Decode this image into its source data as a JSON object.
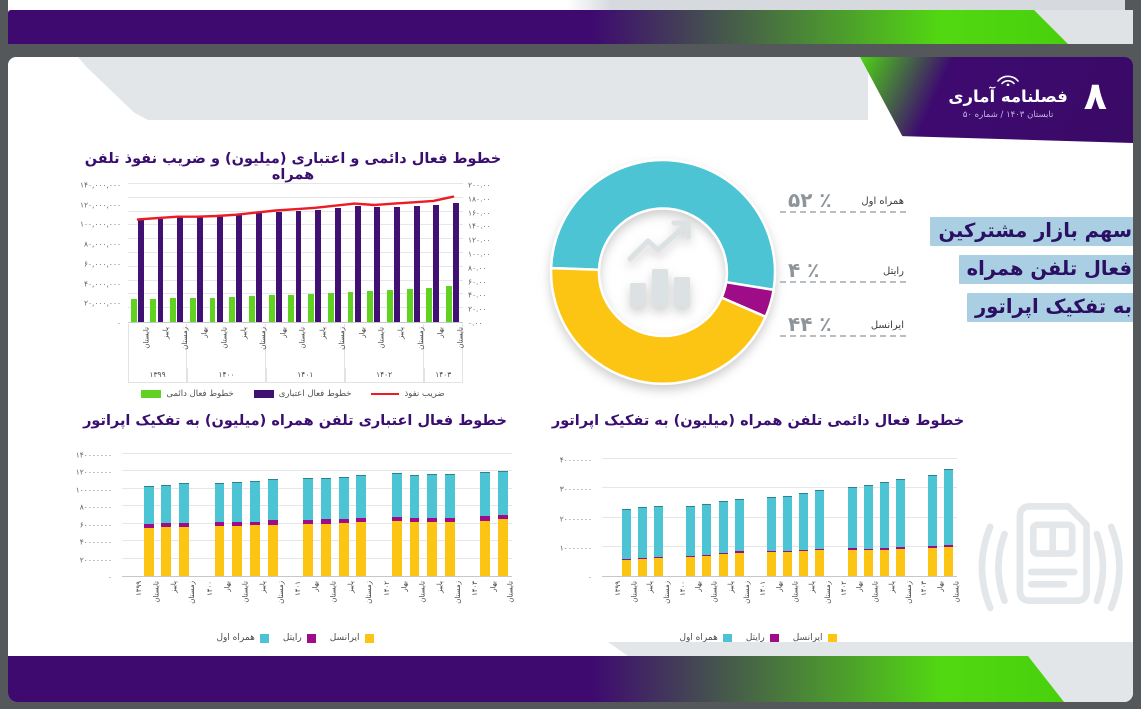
{
  "header": {
    "brand": "فصلنامه آماری",
    "page_number": "۸",
    "issue": "تابستان ۱۴۰۳ / شماره ۵۰"
  },
  "side_title": {
    "lines": [
      "سهم بازار مشترکین",
      "فعال تلفن همراه",
      "به تفکیک اپراتور"
    ]
  },
  "colors": {
    "purple_bar": "#401173",
    "green_bar": "#61d122",
    "red_line": "#ec1c24",
    "teal": "#4cc4d4",
    "yellow": "#fcc413",
    "magenta": "#9e0d87",
    "title_text": "#3a0d70",
    "highlight_bg": "#aacfe3",
    "gradient_purple": "#3e0a70",
    "gradient_green": "#4ed414"
  },
  "chart_data": [
    {
      "id": "combo-lines-penetration",
      "type": "bar+line",
      "title": "خطوط فعال دائمی و اعتباری (میلیون) و ضریب نفوذ تلفن همراه",
      "left_axis": {
        "max": 140000000,
        "ticks": [
          "۱۴۰,۰۰۰,۰۰۰",
          "۱۲۰,۰۰۰,۰۰۰",
          "۱۰۰,۰۰۰,۰۰۰",
          "۸۰,۰۰۰,۰۰۰",
          "۶۰,۰۰۰,۰۰۰",
          "۴۰,۰۰۰,۰۰۰",
          "۲۰,۰۰۰,۰۰۰",
          "۰"
        ]
      },
      "right_axis": {
        "max": 200,
        "ticks": [
          "۲۰۰.۰۰",
          "۱۸۰.۰۰",
          "۱۶۰.۰۰",
          "۱۴۰.۰۰",
          "۱۲۰.۰۰",
          "۱۰۰.۰۰",
          "۸۰.۰۰",
          "۶۰.۰۰",
          "۴۰.۰۰",
          "۲۰.۰۰",
          "۰.۰۰"
        ]
      },
      "year_groups": [
        {
          "year": "۱۳۹۹",
          "seasons": [
            "تابستان",
            "پاییز",
            "زمستان"
          ]
        },
        {
          "year": "۱۴۰۰",
          "seasons": [
            "بهار",
            "تابستان",
            "پاییز",
            "زمستان"
          ]
        },
        {
          "year": "۱۴۰۱",
          "seasons": [
            "بهار",
            "تابستان",
            "پاییز",
            "زمستان"
          ]
        },
        {
          "year": "۱۴۰۲",
          "seasons": [
            "بهار",
            "تابستان",
            "پاییز",
            "زمستان"
          ]
        },
        {
          "year": "۱۴۰۳",
          "seasons": [
            "بهار",
            "تابستان"
          ]
        }
      ],
      "series": [
        {
          "name": "خطوط فعال دائمی",
          "type": "bar",
          "color": "#61d122",
          "values_million": [
            23,
            23.5,
            24,
            24,
            24.5,
            25.5,
            26.5,
            27,
            27.5,
            28.5,
            29.5,
            30.5,
            31,
            32,
            33,
            34.5,
            36.5
          ]
        },
        {
          "name": "خطوط فعال اعتباری",
          "type": "bar",
          "color": "#401173",
          "values_million": [
            103,
            105,
            106.5,
            107,
            107.5,
            109,
            111,
            112,
            113,
            114,
            116,
            118,
            116.5,
            117,
            117.5,
            119,
            121
          ]
        },
        {
          "name": "ضریب نفوذ",
          "type": "line",
          "color": "#ec1c24",
          "axis": "right",
          "values_percent": [
            150,
            152,
            154,
            154,
            155,
            157,
            160,
            163,
            165,
            167,
            170,
            173,
            171,
            173,
            175,
            177,
            183
          ]
        }
      ]
    },
    {
      "id": "operator-market-share",
      "type": "pie",
      "title": "سهم بازار مشترکین فعال تلفن همراه به تفکیک اپراتور",
      "start_angle_deg": 272,
      "slices": [
        {
          "label": "همراه اول",
          "value_percent": 52,
          "display": "۵۲ ٪",
          "color": "#4cc4d4"
        },
        {
          "label": "رایتل",
          "value_percent": 4,
          "display": "۴ ٪",
          "color": "#9e0d87"
        },
        {
          "label": "ایرانسل",
          "value_percent": 44,
          "display": "۴۴ ٪",
          "color": "#fcc413"
        }
      ]
    },
    {
      "id": "credit-lines-by-operator",
      "type": "bar",
      "stacked": true,
      "title": "خطوط فعال اعتباری تلفن همراه (میلیون) به تفکیک اپراتور",
      "y_axis": {
        "max": 140000000,
        "ticks": [
          "۱۴۰۰۰۰۰۰۰",
          "۱۲۰۰۰۰۰۰۰",
          "۱۰۰۰۰۰۰۰۰",
          "۸۰۰۰۰۰۰۰",
          "۶۰۰۰۰۰۰۰",
          "۴۰۰۰۰۰۰۰",
          "۲۰۰۰۰۰۰۰",
          "۰"
        ]
      },
      "x_slots": [
        "۱۳۹۹",
        "تابستان",
        "پاییز",
        "زمستان",
        "۱۴۰۰",
        "بهار",
        "تابستان",
        "پاییز",
        "زمستان",
        "۱۴۰۱",
        "بهار",
        "تابستان",
        "پاییز",
        "زمستان",
        "۱۴۰۲",
        "بهار",
        "تابستان",
        "پاییز",
        "زمستان",
        "۱۴۰۳",
        "بهار",
        "تابستان"
      ],
      "year_slot_indexes": [
        0,
        4,
        9,
        14,
        19
      ],
      "series": [
        {
          "name": "ایرانسل",
          "color": "#fcc413",
          "values_million": [
            55,
            56,
            56.5,
            57,
            57,
            58,
            59,
            59.5,
            60,
            60.5,
            61.5,
            63,
            62,
            62,
            62.5,
            63.5,
            65
          ]
        },
        {
          "name": "رایتل",
          "color": "#9e0d87",
          "values_million": [
            4.5,
            4.5,
            4.5,
            4.5,
            4.5,
            4.5,
            5,
            5,
            5,
            5,
            5,
            5,
            4.5,
            4.5,
            4.5,
            5,
            5.5
          ]
        },
        {
          "name": "همراه اول",
          "color": "#4cc4d4",
          "values_million": [
            43.5,
            44.5,
            45.5,
            45.5,
            46,
            46.5,
            47,
            47.5,
            48,
            48.5,
            49.5,
            50,
            50,
            50.5,
            50.5,
            50.5,
            50.5
          ]
        }
      ]
    },
    {
      "id": "permanent-lines-by-operator",
      "type": "bar",
      "stacked": true,
      "title": "خطوط فعال دائمی تلفن همراه (میلیون) به تفکیک اپراتور",
      "y_axis": {
        "max": 40000000,
        "ticks": [
          "۴۰۰۰۰۰۰۰",
          "۳۰۰۰۰۰۰۰",
          "۲۰۰۰۰۰۰۰",
          "۱۰۰۰۰۰۰۰",
          "۰"
        ]
      },
      "x_slots": [
        "۱۳۹۹",
        "تابستان",
        "پاییز",
        "زمستان",
        "۱۴۰۰",
        "بهار",
        "تابستان",
        "پاییز",
        "زمستان",
        "۱۴۰۱",
        "بهار",
        "تابستان",
        "پاییز",
        "زمستان",
        "۱۴۰۲",
        "بهار",
        "تابستان",
        "پاییز",
        "زمستان",
        "۱۴۰۳",
        "بهار",
        "تابستان"
      ],
      "year_slot_indexes": [
        0,
        4,
        9,
        14,
        19
      ],
      "series": [
        {
          "name": "ایرانسل",
          "color": "#fcc413",
          "values_million": [
            5.5,
            5.8,
            6.2,
            6.5,
            7,
            7.5,
            8,
            8.2,
            8.3,
            8.5,
            8.8,
            9,
            8.8,
            9,
            9.2,
            9.5,
            9.8
          ]
        },
        {
          "name": "رایتل",
          "color": "#9e0d87",
          "values_million": [
            0.3,
            0.3,
            0.3,
            0.3,
            0.3,
            0.4,
            0.4,
            0.4,
            0.4,
            0.4,
            0.5,
            0.5,
            0.5,
            0.5,
            0.6,
            0.7,
            0.8
          ]
        },
        {
          "name": "همراه اول",
          "color": "#4cc4d4",
          "values_million": [
            17.2,
            17.4,
            17.5,
            17.2,
            17.2,
            17.6,
            18.1,
            18.4,
            18.8,
            19.6,
            20.2,
            21,
            21.7,
            22.5,
            23.2,
            24.3,
            25.9
          ]
        }
      ]
    }
  ]
}
